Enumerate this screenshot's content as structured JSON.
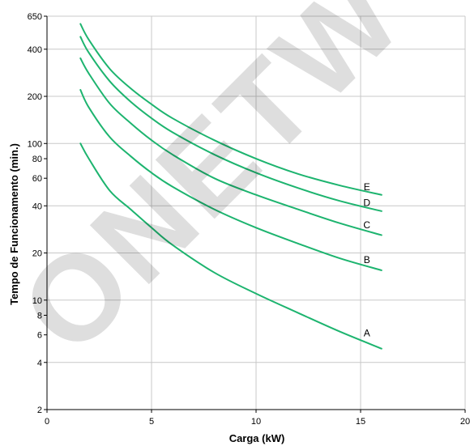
{
  "chart_data": {
    "type": "line",
    "xlabel": "Carga (kW)",
    "ylabel": "Tempo de Funcionamento (min.)",
    "xlim": [
      0,
      20
    ],
    "ylim": [
      2,
      650
    ],
    "yscale": "log",
    "grid": true,
    "colors": {
      "series": "#1db46f",
      "grid": "#c8c8c8",
      "watermark": "#000000"
    },
    "x_ticks": [
      0,
      5,
      10,
      15,
      20
    ],
    "x_tick_labels": [
      "0",
      "5",
      "10",
      "15",
      "20"
    ],
    "y_ticks": [
      2,
      4,
      6,
      8,
      10,
      20,
      40,
      60,
      80,
      100,
      200,
      400,
      650
    ],
    "y_tick_labels": [
      "2",
      "4",
      "6",
      "8",
      "10",
      "20",
      "40",
      "60",
      "80",
      "100",
      "200",
      "400",
      "650"
    ],
    "y_gridlines": [
      2,
      4,
      10,
      20,
      40,
      100,
      200,
      400,
      650
    ],
    "series": [
      {
        "name": "A",
        "x": [
          1.6,
          2,
          3,
          4,
          5,
          6,
          8,
          10,
          12,
          14,
          16
        ],
        "values": [
          100,
          80,
          50,
          38,
          29,
          22.5,
          15,
          11,
          8.3,
          6.3,
          4.9
        ]
      },
      {
        "name": "B",
        "x": [
          1.6,
          2,
          3,
          4,
          5,
          6,
          8,
          10,
          12,
          14,
          16
        ],
        "values": [
          220,
          170,
          110,
          83,
          65,
          53,
          38,
          29,
          23,
          18.5,
          15.5
        ]
      },
      {
        "name": "C",
        "x": [
          1.6,
          2,
          3,
          4,
          5,
          6,
          8,
          10,
          12,
          14,
          16
        ],
        "values": [
          350,
          280,
          180,
          135,
          105,
          85,
          60,
          47,
          38,
          31,
          26
        ]
      },
      {
        "name": "D",
        "x": [
          1.6,
          2,
          3,
          4,
          5,
          6,
          8,
          10,
          12,
          14,
          16
        ],
        "values": [
          480,
          380,
          250,
          185,
          145,
          118,
          85,
          65,
          52,
          43,
          37
        ]
      },
      {
        "name": "E",
        "x": [
          1.6,
          2,
          3,
          4,
          5,
          6,
          8,
          10,
          12,
          14,
          16
        ],
        "values": [
          580,
          460,
          300,
          225,
          178,
          145,
          105,
          80,
          64,
          54,
          47
        ]
      }
    ]
  },
  "watermark": {
    "text": "ONETW"
  }
}
